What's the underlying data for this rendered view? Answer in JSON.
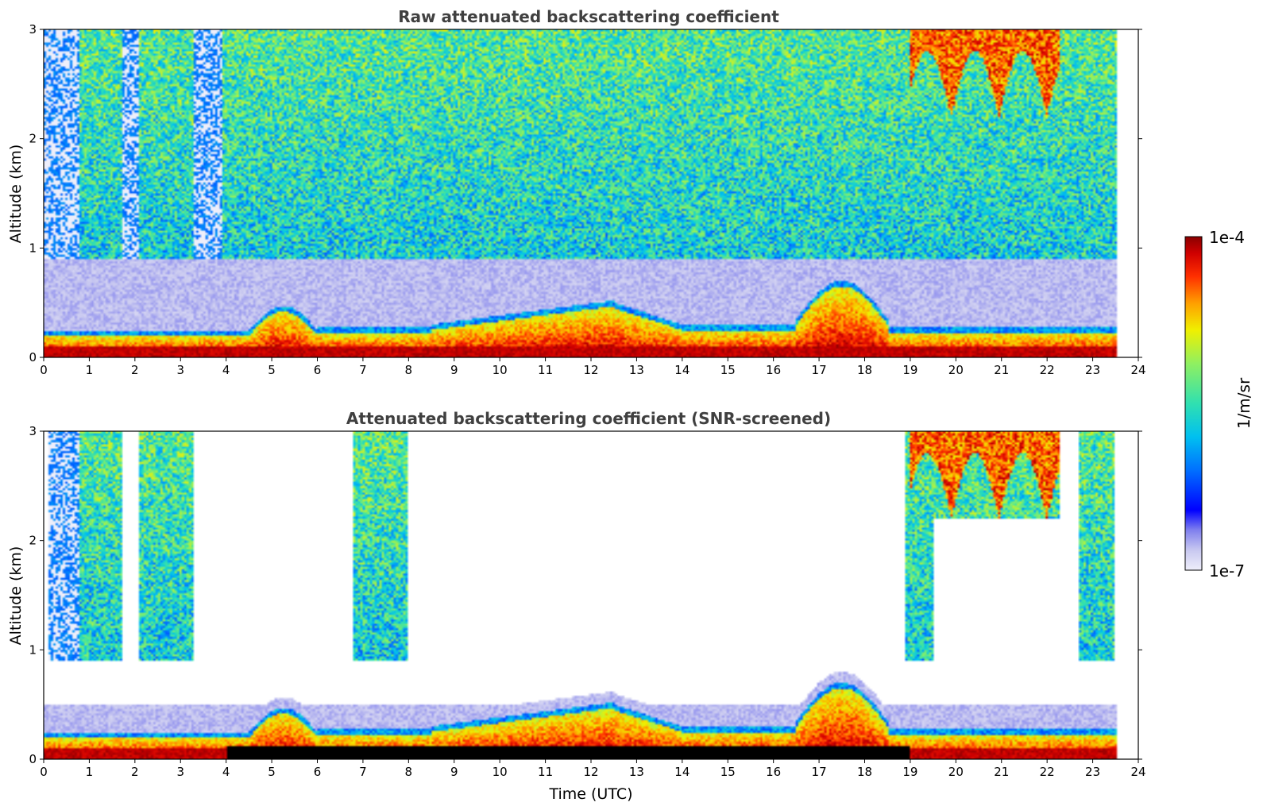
{
  "chart_data": [
    {
      "type": "heatmap",
      "title": "Raw attenuated backscattering coefficient",
      "xlabel": "",
      "ylabel": "Altitude (km)",
      "xlim": [
        0,
        24
      ],
      "ylim": [
        0,
        3
      ],
      "xticks": [
        0,
        1,
        2,
        3,
        4,
        5,
        6,
        7,
        8,
        9,
        10,
        11,
        12,
        13,
        14,
        15,
        16,
        17,
        18,
        19,
        20,
        21,
        22,
        23,
        24
      ],
      "yticks": [
        0,
        1,
        2,
        3
      ],
      "data_end_hour": 23.55,
      "features": [
        {
          "name": "surface-aerosol-layer",
          "t_start": 0,
          "t_end": 23.55,
          "top_km": 0.25
        },
        {
          "name": "boundary-layer-top",
          "t_start": 4.5,
          "t_end": 19.0,
          "top_km": 0.5
        },
        {
          "name": "high-cloud",
          "t_start": 19.0,
          "t_end": 22.5,
          "bottom_km": 2.1,
          "top_km": 3.0
        }
      ]
    },
    {
      "type": "heatmap",
      "title": "Attenuated backscattering coefficient (SNR-screened)",
      "xlabel": "Time (UTC)",
      "ylabel": "Altitude (km)",
      "xlim": [
        0,
        24
      ],
      "ylim": [
        0,
        3
      ],
      "xticks": [
        0,
        1,
        2,
        3,
        4,
        5,
        6,
        7,
        8,
        9,
        10,
        11,
        12,
        13,
        14,
        15,
        16,
        17,
        18,
        19,
        20,
        21,
        22,
        23,
        24
      ],
      "yticks": [
        0,
        1,
        2,
        3
      ],
      "data_end_hour": 23.55
    }
  ],
  "colorbar": {
    "max_label": "1e-4",
    "min_label": "1e-7",
    "unit_label": "1/m/sr",
    "colors": [
      "#e8e8f8",
      "#c8c8f0",
      "#9090e8",
      "#4040f0",
      "#0000ff",
      "#0050ff",
      "#00a0ff",
      "#00d0e0",
      "#30e0b0",
      "#70f080",
      "#b0f040",
      "#f0f000",
      "#ffc000",
      "#ff8000",
      "#ff3000",
      "#e00000",
      "#900000"
    ]
  }
}
